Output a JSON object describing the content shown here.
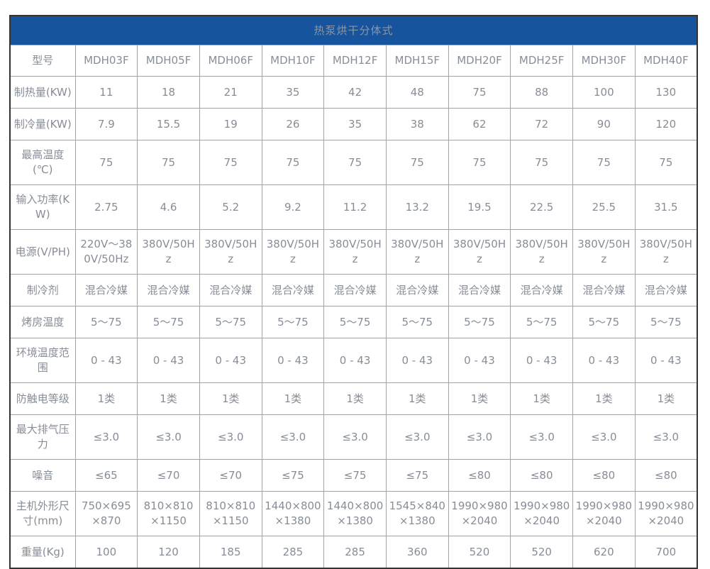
{
  "colors": {
    "title_bar_bg": "#16549e",
    "title_text": "#8c96a3",
    "cell_text": "#878d97",
    "inner_border": "#a3a3a3",
    "outer_border": "#333333"
  },
  "table": {
    "title": "热泵烘干分体式",
    "corner_label": "型号",
    "models": [
      "MDH03F",
      "MDH05F",
      "MDH06F",
      "MDH10F",
      "MDH12F",
      "MDH15F",
      "MDH20F",
      "MDH25F",
      "MDH30F",
      "MDH40F"
    ],
    "rows": [
      {
        "label": "制热量(KW)",
        "values": [
          "11",
          "18",
          "21",
          "35",
          "42",
          "48",
          "75",
          "88",
          "100",
          "130"
        ]
      },
      {
        "label": "制冷量(KW)",
        "values": [
          "7.9",
          "15.5",
          "19",
          "26",
          "35",
          "38",
          "62",
          "72",
          "90",
          "120"
        ]
      },
      {
        "label": "最高温度(℃)",
        "values": [
          "75",
          "75",
          "75",
          "75",
          "75",
          "75",
          "75",
          "75",
          "75",
          "75"
        ]
      },
      {
        "label": "输入功率(KW)",
        "values": [
          "2.75",
          "4.6",
          "5.2",
          "9.2",
          "11.2",
          "13.2",
          "19.5",
          "22.5",
          "25.5",
          "31.5"
        ]
      },
      {
        "label": "电源(V/PH)",
        "values": [
          "220V～380V/50Hz",
          "380V/50Hz",
          "380V/50Hz",
          "380V/50Hz",
          "380V/50Hz",
          "380V/50Hz",
          "380V/50Hz",
          "380V/50Hz",
          "380V/50Hz",
          "380V/50Hz"
        ]
      },
      {
        "label": "制冷剂",
        "values": [
          "混合冷媒",
          "混合冷媒",
          "混合冷媒",
          "混合冷媒",
          "混合冷媒",
          "混合冷媒",
          "混合冷媒",
          "混合冷媒",
          "混合冷媒",
          "混合冷媒"
        ]
      },
      {
        "label": "烤房温度",
        "values": [
          "5～75",
          "5～75",
          "5～75",
          "5～75",
          "5～75",
          "5～75",
          "5～75",
          "5～75",
          "5～75",
          "5～75"
        ]
      },
      {
        "label": "环境温度范围",
        "values": [
          "0 - 43",
          "0 - 43",
          "0 - 43",
          "0 - 43",
          "0 - 43",
          "0 - 43",
          "0 - 43",
          "0 - 43",
          "0 - 43",
          "0 - 43"
        ]
      },
      {
        "label": "防触电等级",
        "values": [
          "1类",
          "1类",
          "1类",
          "1类",
          "1类",
          "1类",
          "1类",
          "1类",
          "1类",
          "1类"
        ]
      },
      {
        "label": "最大排气压力",
        "values": [
          "≤3.0",
          "≤3.0",
          "≤3.0",
          "≤3.0",
          "≤3.0",
          "≤3.0",
          "≤3.0",
          "≤3.0",
          "≤3.0",
          "≤3.0"
        ]
      },
      {
        "label": "噪音",
        "values": [
          "≤65",
          "≤70",
          "≤70",
          "≤75",
          "≤75",
          "≤75",
          "≤80",
          "≤80",
          "≤80",
          "≤80"
        ]
      },
      {
        "label": "主机外形尺寸(mm)",
        "values": [
          "750×695×870",
          "810×810×1150",
          "810×810×1150",
          "1440×800×1380",
          "1440×800×1380",
          "1545×840×1380",
          "1990×980×2040",
          "1990×980×2040",
          "1990×980×2040",
          "1990×980×2040"
        ]
      },
      {
        "label": "重量(Kg)",
        "values": [
          "100",
          "120",
          "185",
          "285",
          "285",
          "360",
          "520",
          "520",
          "620",
          "700"
        ]
      }
    ]
  }
}
